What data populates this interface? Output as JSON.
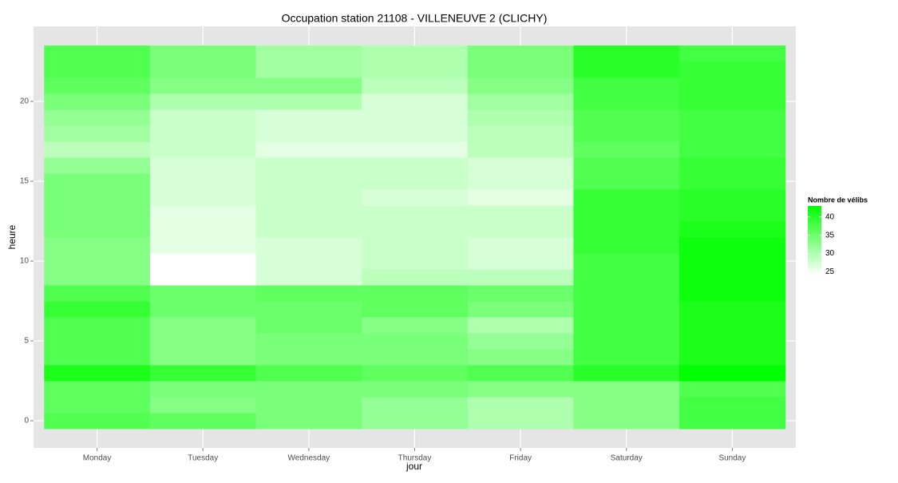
{
  "chart_data": {
    "type": "heatmap",
    "title": "Occupation station 21108 - VILLENEUVE 2 (CLICHY)",
    "xlabel": "jour",
    "ylabel": "heure",
    "categories": [
      "Monday",
      "Tuesday",
      "Wednesday",
      "Thursday",
      "Friday",
      "Saturday",
      "Sunday"
    ],
    "y": [
      0,
      1,
      2,
      3,
      4,
      5,
      6,
      7,
      8,
      9,
      10,
      11,
      12,
      13,
      14,
      15,
      16,
      17,
      18,
      19,
      20,
      21,
      22,
      23
    ],
    "values": [
      [
        37,
        36,
        36,
        41,
        37,
        37,
        37,
        39,
        37,
        33,
        33,
        33,
        34,
        34,
        34,
        34,
        32,
        29,
        31,
        32,
        34,
        36,
        37,
        37
      ],
      [
        36,
        33,
        34,
        39,
        33,
        33,
        33,
        35,
        35,
        24,
        24,
        26,
        26,
        26,
        27,
        27,
        27,
        28,
        28,
        28,
        30,
        33,
        34,
        34
      ],
      [
        34,
        34,
        34,
        37,
        34,
        34,
        35,
        35,
        36,
        27,
        27,
        27,
        28,
        28,
        28,
        28,
        28,
        26,
        27,
        27,
        30,
        33,
        31,
        31
      ],
      [
        32,
        32,
        34,
        36,
        34,
        34,
        33,
        36,
        36,
        29,
        28,
        28,
        28,
        28,
        27,
        28,
        28,
        26,
        27,
        27,
        27,
        29,
        30,
        30
      ],
      [
        30,
        30,
        33,
        37,
        33,
        32,
        30,
        34,
        35,
        29,
        27,
        27,
        28,
        28,
        26,
        27,
        27,
        29,
        29,
        30,
        31,
        33,
        34,
        34
      ],
      [
        33,
        33,
        33,
        40,
        38,
        38,
        38,
        38,
        38,
        38,
        38,
        39,
        39,
        39,
        39,
        37,
        37,
        36,
        37,
        37,
        38,
        38,
        40,
        40
      ],
      [
        38,
        38,
        37,
        43,
        41,
        41,
        41,
        41,
        42,
        42,
        42,
        42,
        41,
        40,
        40,
        39,
        39,
        38,
        38,
        38,
        39,
        39,
        39,
        38
      ]
    ],
    "ylim": [
      -1.7,
      24.7
    ],
    "yticks": [
      0,
      5,
      10,
      15,
      20
    ],
    "grid": true,
    "colorbar": {
      "title": "Nombre de vélibs",
      "ticks": [
        25,
        30,
        35,
        40
      ],
      "lim": [
        24,
        43
      ],
      "low": "#ffffff",
      "high": "#00ff00"
    }
  }
}
